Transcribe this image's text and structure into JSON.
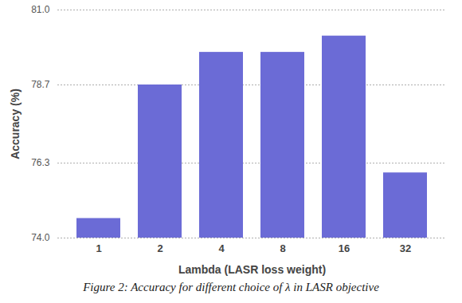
{
  "chart_data": {
    "type": "bar",
    "caption": "Figure 2: Accuracy for different choice of λ in LASR objective",
    "x_label": "Lambda (LASR loss weight)",
    "y_label": "Accuracy (%)",
    "categories": [
      "1",
      "2",
      "4",
      "8",
      "16",
      "32"
    ],
    "values": [
      74.6,
      78.7,
      79.7,
      79.7,
      80.2,
      76.0
    ],
    "color": "#6b6bd6",
    "ylim": [
      74,
      81
    ],
    "yticks": [
      {
        "value": 74,
        "label": "74.0"
      },
      76.3,
      78.7,
      {
        "value": 81,
        "label": "81.0"
      }
    ],
    "grid": true
  }
}
